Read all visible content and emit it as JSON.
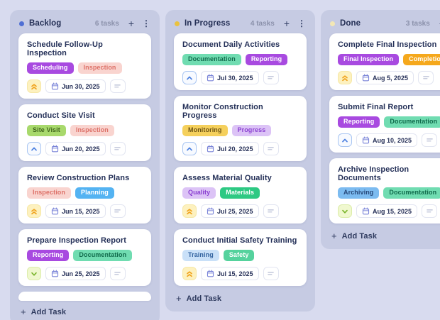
{
  "board": {
    "add_task_label": "Add Task",
    "columns": [
      {
        "title": "Backlog",
        "count": "6 tasks",
        "dot_color": "#4f6fd4",
        "show_header_actions": true,
        "partial_card": true,
        "cards": [
          {
            "title": "Schedule Follow-Up Inspection",
            "tags": [
              {
                "label": "Scheduling",
                "bg": "#a84ae0",
                "color": "#ffffff"
              },
              {
                "label": "Inspection",
                "bg": "#f9d4cf",
                "color": "#dd7168"
              }
            ],
            "priority": "high",
            "date": "Jun 30, 2025"
          },
          {
            "title": "Conduct Site Visit",
            "tags": [
              {
                "label": "Site Visit",
                "bg": "#a8d96c",
                "color": "#3f651a"
              },
              {
                "label": "Inspection",
                "bg": "#f9d4cf",
                "color": "#dd7168"
              }
            ],
            "priority": "medium",
            "date": "Jun 20, 2025"
          },
          {
            "title": "Review Construction Plans",
            "tags": [
              {
                "label": "Inspection",
                "bg": "#f9d4cf",
                "color": "#dd7168"
              },
              {
                "label": "Planning",
                "bg": "#54b3f2",
                "color": "#ffffff"
              }
            ],
            "priority": "high",
            "date": "Jun 15, 2025"
          },
          {
            "title": "Prepare Inspection Report",
            "tags": [
              {
                "label": "Reporting",
                "bg": "#a84ae0",
                "color": "#ffffff"
              },
              {
                "label": "Documentation",
                "bg": "#70dcb1",
                "color": "#116b4c"
              }
            ],
            "priority": "low",
            "date": "Jun 25, 2025"
          }
        ]
      },
      {
        "title": "In Progress",
        "count": "4 tasks",
        "dot_color": "#eac23f",
        "show_header_actions": true,
        "partial_card": false,
        "cards": [
          {
            "title": "Document Daily Activities",
            "tags": [
              {
                "label": "Documentation",
                "bg": "#70dcb1",
                "color": "#116b4c"
              },
              {
                "label": "Reporting",
                "bg": "#a84ae0",
                "color": "#ffffff"
              }
            ],
            "priority": "medium",
            "date": "Jul 30, 2025"
          },
          {
            "title": "Monitor Construction Progress",
            "tags": [
              {
                "label": "Monitoring",
                "bg": "#f5d05c",
                "color": "#6d5415"
              },
              {
                "label": "Progress",
                "bg": "#dcc3f6",
                "color": "#8a3fd1"
              }
            ],
            "priority": "medium",
            "date": "Jul 20, 2025"
          },
          {
            "title": "Assess Material Quality",
            "tags": [
              {
                "label": "Quality",
                "bg": "#dcc3f6",
                "color": "#8a3fd1"
              },
              {
                "label": "Materials",
                "bg": "#2dc983",
                "color": "#ffffff"
              }
            ],
            "priority": "high",
            "date": "Jul 25, 2025"
          },
          {
            "title": "Conduct Initial Safety Training",
            "tags": [
              {
                "label": "Training",
                "bg": "#c9e0f8",
                "color": "#33639f"
              },
              {
                "label": "Safety",
                "bg": "#55d29d",
                "color": "#ffffff"
              }
            ],
            "priority": "high",
            "date": "Jul 15, 2025"
          }
        ]
      },
      {
        "title": "Done",
        "count": "3 tasks",
        "dot_color": "#f3e7b5",
        "show_header_actions": true,
        "partial_card": false,
        "cards": [
          {
            "title": "Complete Final Inspection",
            "tags": [
              {
                "label": "Final Inspection",
                "bg": "#a84ae0",
                "color": "#ffffff"
              },
              {
                "label": "Completion",
                "bg": "#f5a81c",
                "color": "#ffffff"
              }
            ],
            "priority": "high",
            "date": "Aug 5, 2025"
          },
          {
            "title": "Submit Final Report",
            "tags": [
              {
                "label": "Reporting",
                "bg": "#a84ae0",
                "color": "#ffffff"
              },
              {
                "label": "Documentation",
                "bg": "#70dcb1",
                "color": "#116b4c"
              }
            ],
            "priority": "medium",
            "date": "Aug 10, 2025"
          },
          {
            "title": "Archive Inspection Documents",
            "tags": [
              {
                "label": "Archiving",
                "bg": "#7cbbf0",
                "color": "#27497a"
              },
              {
                "label": "Documentation",
                "bg": "#70dcb1",
                "color": "#116b4c"
              }
            ],
            "priority": "low",
            "date": "Aug 15, 2025"
          }
        ]
      }
    ]
  },
  "icons": {
    "plus": "+",
    "kebab": "⋮"
  },
  "priority_styles": {
    "high": {
      "bg": "#fdf1bf",
      "border": "#f6e8a8",
      "color": "#f0a41f"
    },
    "medium": {
      "bg": "#f7faff",
      "border": "#a9c6f2",
      "color": "#4a7fe0"
    },
    "low": {
      "bg": "#f0f8cf",
      "border": "#dcedab",
      "color": "#7cb62f"
    }
  },
  "theme": {
    "page_bg": "#d8dbef",
    "column_bg": "#c6cbe3",
    "card_bg": "#ffffff",
    "title_text": "#243058",
    "muted_text": "#8b91ab"
  }
}
